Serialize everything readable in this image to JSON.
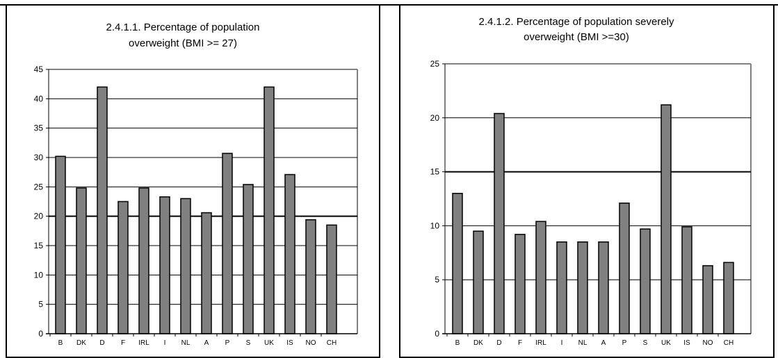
{
  "chart_data": [
    {
      "type": "bar",
      "title_lines": [
        "2.4.1.1. Percentage of population",
        "overweight (BMI >= 27)"
      ],
      "categories": [
        "B",
        "DK",
        "D",
        "F",
        "IRL",
        "I",
        "NL",
        "A",
        "P",
        "S",
        "UK",
        "IS",
        "NO",
        "CH"
      ],
      "values": [
        30.2,
        24.8,
        42.0,
        22.5,
        24.8,
        23.3,
        23.0,
        20.6,
        30.7,
        25.4,
        42.0,
        27.1,
        19.4,
        18.5
      ],
      "ylim": [
        0,
        45
      ],
      "yticks": [
        0,
        5,
        10,
        15,
        20,
        25,
        30,
        35,
        40,
        45
      ],
      "grid": true,
      "bar_color": "#808080"
    },
    {
      "type": "bar",
      "title_lines": [
        "2.4.1.2. Percentage of population severely",
        "overweight (BMI >=30)"
      ],
      "categories": [
        "B",
        "DK",
        "D",
        "F",
        "IRL",
        "I",
        "NL",
        "A",
        "P",
        "S",
        "UK",
        "IS",
        "NO",
        "CH"
      ],
      "values": [
        13.0,
        9.5,
        20.4,
        9.2,
        10.4,
        8.5,
        8.5,
        8.5,
        12.1,
        9.7,
        21.2,
        9.9,
        6.3,
        6.6
      ],
      "ylim": [
        0,
        25
      ],
      "yticks": [
        0,
        5,
        10,
        15,
        20,
        25
      ],
      "grid": true,
      "bar_color": "#808080"
    }
  ]
}
